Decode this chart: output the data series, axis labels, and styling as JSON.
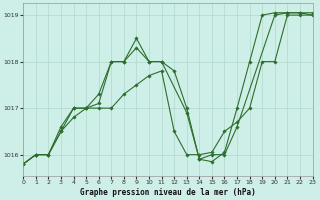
{
  "title": "Graphe pression niveau de la mer (hPa)",
  "bg_color": "#ceeee8",
  "grid_color": "#b0d8cc",
  "line_color": "#2d6e2d",
  "marker_color": "#2d6e2d",
  "xlim": [
    0,
    23
  ],
  "ylim": [
    1015.55,
    1019.25
  ],
  "xticks": [
    0,
    1,
    2,
    3,
    4,
    5,
    6,
    7,
    8,
    9,
    10,
    11,
    12,
    13,
    14,
    15,
    16,
    17,
    18,
    19,
    20,
    21,
    22,
    23
  ],
  "yticks": [
    1016,
    1017,
    1018,
    1019
  ],
  "figsize": [
    3.2,
    2.0
  ],
  "dpi": 100,
  "series": [
    {
      "x": [
        0,
        1,
        2,
        3,
        4,
        5,
        6,
        7,
        8,
        9,
        10,
        11,
        13,
        14,
        15,
        16,
        17,
        20,
        21,
        22,
        23
      ],
      "y": [
        1015.8,
        1016.0,
        1016.0,
        1016.6,
        1017.0,
        1017.0,
        1017.1,
        1018.0,
        1018.0,
        1018.3,
        1018.0,
        1018.0,
        1016.9,
        1015.9,
        1016.0,
        1016.0,
        1016.6,
        1019.0,
        1019.05,
        1019.05,
        1019.0
      ]
    },
    {
      "x": [
        0,
        1,
        2,
        3,
        4,
        5,
        6,
        7,
        8,
        9,
        10,
        11,
        12,
        13,
        14,
        15,
        16,
        17,
        18,
        19,
        20,
        21,
        22,
        23
      ],
      "y": [
        1015.8,
        1016.0,
        1016.0,
        1016.5,
        1017.0,
        1017.0,
        1017.3,
        1018.0,
        1018.0,
        1018.5,
        1018.0,
        1018.0,
        1017.8,
        1017.0,
        1015.9,
        1015.85,
        1016.05,
        1017.0,
        1018.0,
        1019.0,
        1019.05,
        1019.05,
        1019.05,
        1019.05
      ]
    },
    {
      "x": [
        0,
        1,
        2,
        3,
        4,
        5,
        6,
        7,
        8,
        9,
        10,
        11,
        12,
        13,
        14,
        15,
        16,
        17,
        18,
        19,
        20,
        21,
        22,
        23
      ],
      "y": [
        1015.8,
        1016.0,
        1016.0,
        1016.5,
        1016.8,
        1017.0,
        1017.0,
        1017.0,
        1017.3,
        1017.5,
        1017.7,
        1017.8,
        1016.5,
        1016.0,
        1016.0,
        1016.05,
        1016.5,
        1016.7,
        1017.0,
        1018.0,
        1018.0,
        1019.0,
        1019.0,
        1019.0
      ]
    }
  ]
}
